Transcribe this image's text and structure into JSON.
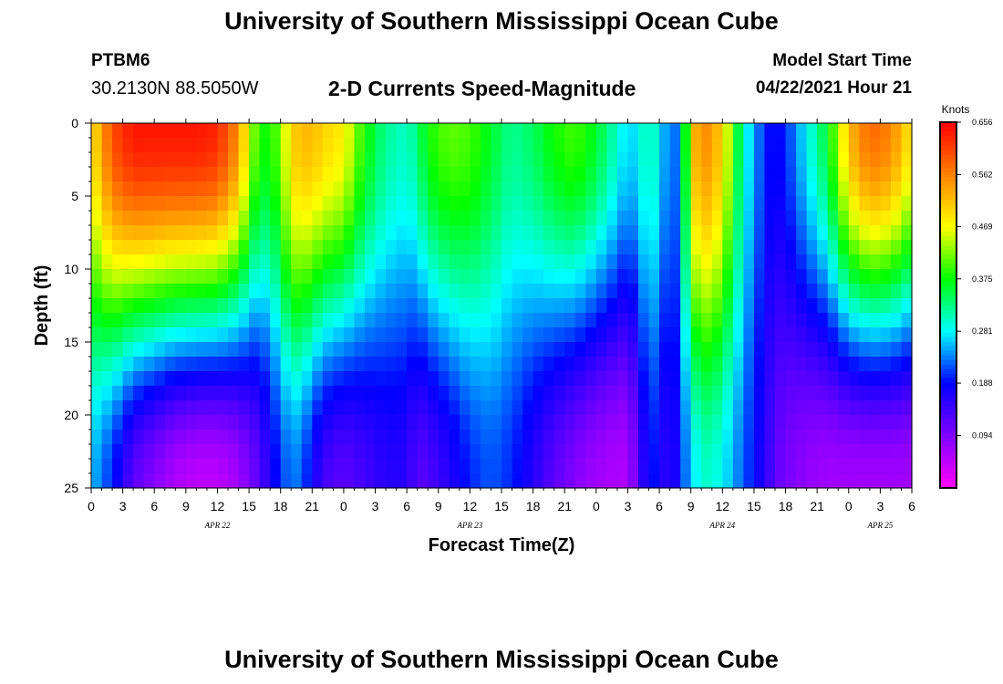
{
  "header": {
    "title": "University of Southern Mississippi Ocean Cube",
    "station": "PTBM6",
    "coords": "30.2130N  88.5050W",
    "chart_title": "2-D Currents Speed-Magnitude",
    "model_label": "Model Start Time",
    "model_time": "04/22/2021 Hour 21"
  },
  "footer": {
    "title": "University of Southern Mississippi Ocean Cube"
  },
  "chart_data": {
    "type": "heatmap",
    "title": "2-D Currents Speed-Magnitude",
    "xlabel": "Forecast Time(Z)",
    "ylabel": "Depth (ft)",
    "colorbar_label": "Knots",
    "colorbar_ticks": [
      "0.656",
      "0.562",
      "0.469",
      "0.375",
      "0.281",
      "0.188",
      "0.094"
    ],
    "zlim": [
      0.0,
      0.656
    ],
    "xlim_hours": [
      0,
      78
    ],
    "ylim": [
      0,
      25
    ],
    "y_ticks": [
      0,
      5,
      10,
      15,
      20,
      25
    ],
    "x_tick_labels": [
      "0",
      "3",
      "6",
      "9",
      "12",
      "15",
      "18",
      "21",
      "0",
      "3",
      "6",
      "9",
      "12",
      "15",
      "18",
      "21",
      "0",
      "3",
      "6",
      "9",
      "12",
      "15",
      "18",
      "21",
      "0",
      "3",
      "6"
    ],
    "date_labels": [
      {
        "text": "APR 22",
        "hour": 12
      },
      {
        "text": "APR 23",
        "hour": 36
      },
      {
        "text": "APR 24",
        "hour": 60
      },
      {
        "text": "APR 25",
        "hour": 75
      }
    ],
    "colormap": [
      "#ff00ff",
      "#8000ff",
      "#0000ff",
      "#00ffff",
      "#00ff00",
      "#ffff00",
      "#ff8000",
      "#ff0000"
    ],
    "speed_profile": {
      "hours": [
        0,
        2,
        4,
        6,
        8,
        10,
        12,
        14,
        15,
        16,
        17,
        18,
        19,
        20,
        21,
        22,
        24,
        26,
        28,
        30,
        31,
        32,
        34,
        36,
        38,
        40,
        42,
        44,
        46,
        48,
        50,
        51,
        52,
        53,
        54,
        55,
        56,
        57,
        58,
        59,
        60,
        62,
        64,
        65,
        66,
        68,
        70,
        72,
        74,
        76,
        78
      ],
      "surface_speed": [
        0.48,
        0.6,
        0.64,
        0.64,
        0.64,
        0.64,
        0.63,
        0.55,
        0.45,
        0.38,
        0.38,
        0.42,
        0.5,
        0.52,
        0.52,
        0.5,
        0.48,
        0.38,
        0.32,
        0.3,
        0.33,
        0.38,
        0.41,
        0.4,
        0.36,
        0.32,
        0.34,
        0.38,
        0.4,
        0.36,
        0.3,
        0.26,
        0.28,
        0.32,
        0.28,
        0.22,
        0.24,
        0.5,
        0.56,
        0.54,
        0.5,
        0.3,
        0.2,
        0.18,
        0.2,
        0.28,
        0.36,
        0.52,
        0.58,
        0.56,
        0.48
      ],
      "bottom_speed": [
        0.26,
        0.2,
        0.12,
        0.09,
        0.06,
        0.05,
        0.05,
        0.07,
        0.1,
        0.12,
        0.17,
        0.2,
        0.24,
        0.22,
        0.18,
        0.14,
        0.12,
        0.14,
        0.16,
        0.16,
        0.12,
        0.13,
        0.16,
        0.2,
        0.22,
        0.2,
        0.16,
        0.12,
        0.09,
        0.07,
        0.06,
        0.06,
        0.12,
        0.2,
        0.18,
        0.14,
        0.2,
        0.26,
        0.3,
        0.3,
        0.28,
        0.22,
        0.16,
        0.12,
        0.1,
        0.08,
        0.07,
        0.07,
        0.07,
        0.07,
        0.07
      ]
    }
  }
}
